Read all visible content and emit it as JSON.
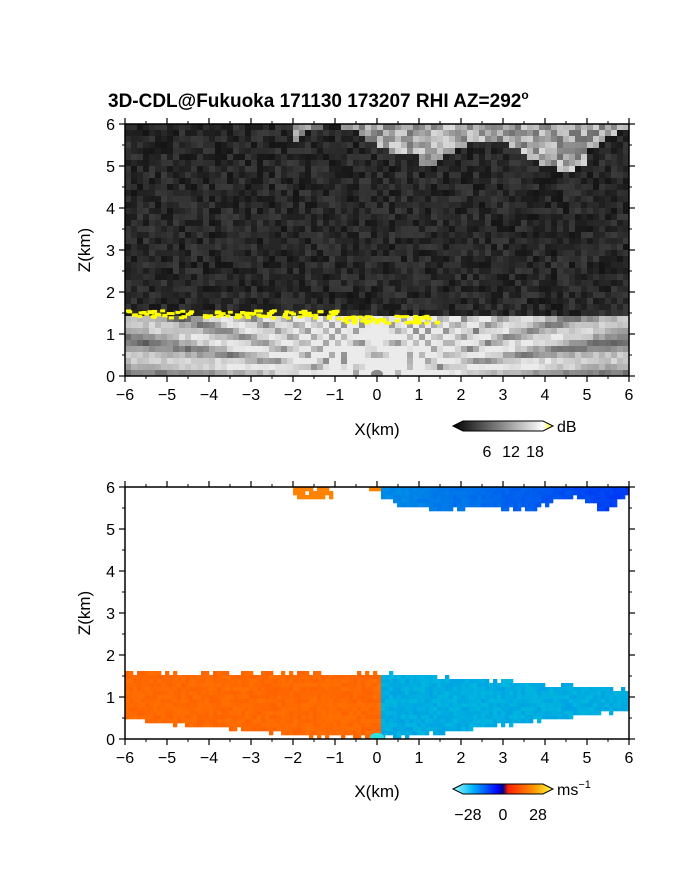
{
  "title_main": "3D-CDL@Fukuoka 171130 173207 RHI AZ=292",
  "title_deg": "o",
  "chart_data": [
    {
      "type": "heatmap",
      "name": "signal-intensity",
      "xlabel": "X(km)",
      "ylabel": "Z(km)",
      "xlim": [
        -6,
        6
      ],
      "ylim": [
        0,
        6
      ],
      "xticks": [
        -6,
        -5,
        -4,
        -3,
        -2,
        -1,
        0,
        1,
        2,
        3,
        4,
        5,
        6
      ],
      "yticks": [
        0,
        1,
        2,
        3,
        4,
        5,
        6
      ],
      "colorbar": {
        "unit": "dB",
        "ticks": [
          6,
          12,
          18
        ],
        "range": [
          0,
          20
        ],
        "colors": [
          "#000000",
          "#ffffff",
          "#ffff00"
        ]
      },
      "features": {
        "boundary_layer_top_km": 1.5,
        "yellow_layer_km": 1.5,
        "upper_cloud_base_km": 5.6,
        "upper_cloud_x_range_km": [
          -2,
          6
        ]
      }
    },
    {
      "type": "heatmap",
      "name": "doppler-velocity",
      "xlabel": "X(km)",
      "ylabel": "Z(km)",
      "xlim": [
        -6,
        6
      ],
      "ylim": [
        0,
        6
      ],
      "xticks": [
        -6,
        -5,
        -4,
        -3,
        -2,
        -1,
        0,
        1,
        2,
        3,
        4,
        5,
        6
      ],
      "yticks": [
        0,
        1,
        2,
        3,
        4,
        5,
        6
      ],
      "colorbar": {
        "unit": "ms",
        "unit_exp": "−1",
        "ticks": [
          -28,
          0,
          28
        ],
        "range": [
          -32,
          32
        ]
      },
      "features": {
        "lower_layer_top_km": 1.6,
        "lower_left_velocity_ms": 15,
        "lower_right_velocity_ms": -24,
        "upper_left_velocity_ms": 20,
        "upper_right_velocity_ms": -12
      }
    }
  ]
}
